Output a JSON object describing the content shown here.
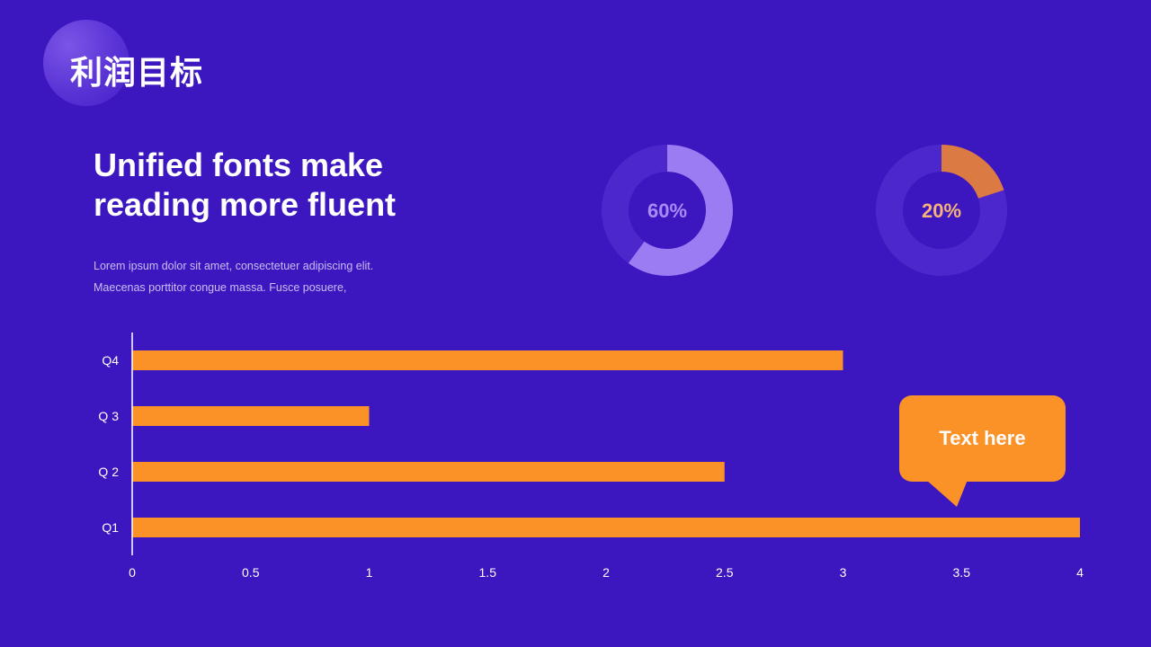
{
  "header": {
    "title": "利润目标"
  },
  "intro": {
    "headline": "Unified fonts make reading more fluent",
    "body_lines": [
      "Lorem ipsum dolor sit amet, consectetuer adipiscing elit.",
      "Maecenas porttitor congue massa. Fusce posuere,"
    ]
  },
  "donuts": [
    {
      "label": "60%",
      "value": 60,
      "color": "#9b7cf2",
      "track": "#4c28cc",
      "label_color": "#a98bf5"
    },
    {
      "label": "20%",
      "value": 20,
      "color": "#dc7a43",
      "track": "#4c28cc",
      "label_color": "#f7b27a"
    }
  ],
  "callout": {
    "text": "Text here",
    "color": "#fb9228"
  },
  "chart_data": {
    "type": "bar",
    "orientation": "horizontal",
    "categories": [
      "Q1",
      "Q 2",
      "Q 3",
      "Q4"
    ],
    "values": [
      4,
      2.5,
      1,
      3
    ],
    "xlim": [
      0,
      4
    ],
    "xticks": [
      "0",
      "0.5",
      "1",
      "1.5",
      "2",
      "2.5",
      "3",
      "3.5",
      "4"
    ],
    "bar_color": "#fb9228",
    "grid": false,
    "title": "",
    "xlabel": "",
    "ylabel": ""
  }
}
